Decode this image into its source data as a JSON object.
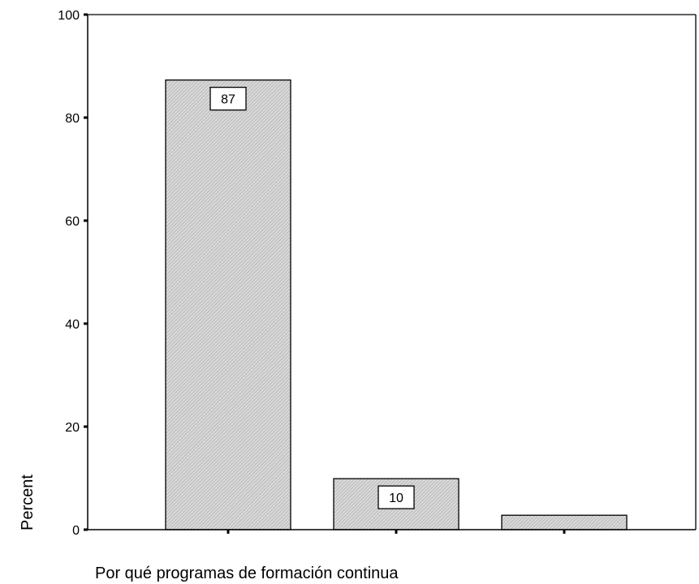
{
  "chart_data": {
    "type": "bar",
    "title": "",
    "xlabel": "Por qué programas de formación continua",
    "ylabel": "Percent",
    "ylim": [
      0,
      100
    ],
    "yticks": [
      0,
      20,
      40,
      60,
      80,
      100
    ],
    "categories": [
      "",
      "",
      ""
    ],
    "values": [
      87.3,
      9.9,
      2.8
    ],
    "data_labels": [
      "87",
      "10",
      ""
    ],
    "grid": false,
    "legend": "none",
    "bar_fill": "hatched light gray",
    "colors": {
      "bar_fill": "#d9d9d9",
      "hatch": "#a6a6a6",
      "stroke": "#000000"
    }
  }
}
